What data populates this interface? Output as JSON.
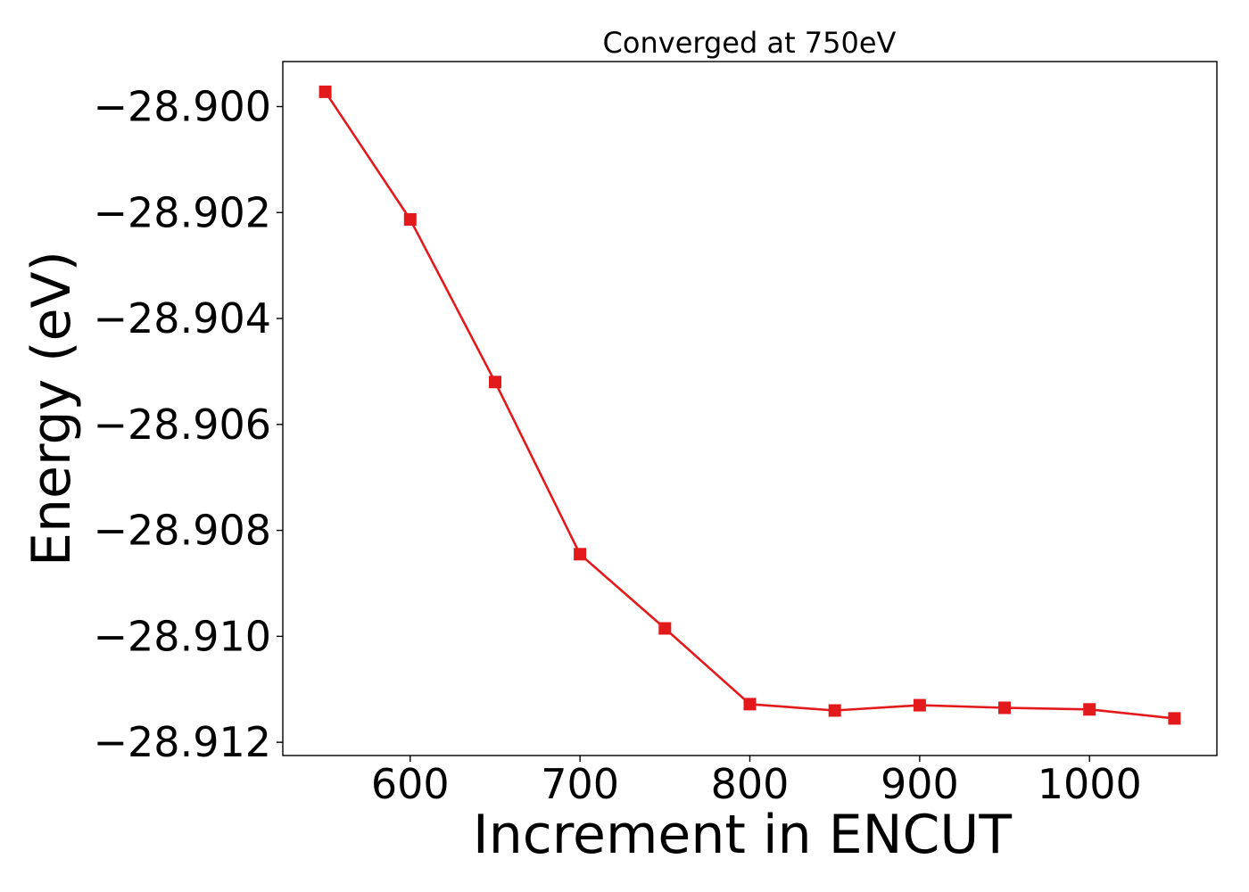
{
  "chart_data": {
    "type": "line",
    "title": "Converged at 750eV",
    "xlabel": "Increment in ENCUT",
    "ylabel": "Energy (eV)",
    "x": [
      550,
      600,
      650,
      700,
      750,
      800,
      850,
      900,
      950,
      1000,
      1050
    ],
    "series": [
      {
        "values": [
          -28.89972,
          -28.90213,
          -28.9052,
          -28.90845,
          -28.90985,
          -28.91128,
          -28.9114,
          -28.9113,
          -28.91135,
          -28.91138,
          -28.91155
        ],
        "color": "#e31a1c",
        "marker": "square"
      }
    ],
    "xlim": [
      525,
      1075
    ],
    "ylim": [
      -28.91225,
      -28.89915
    ],
    "xticks": [
      600,
      700,
      800,
      900,
      1000
    ],
    "xtick_labels": [
      "600",
      "700",
      "800",
      "900",
      "1000"
    ],
    "yticks": [
      -28.9,
      -28.902,
      -28.904,
      -28.906,
      -28.908,
      -28.91,
      -28.912
    ],
    "ytick_labels": [
      "−28.900",
      "−28.902",
      "−28.904",
      "−28.906",
      "−28.908",
      "−28.910",
      "−28.912"
    ],
    "grid": false,
    "legend": "none"
  }
}
